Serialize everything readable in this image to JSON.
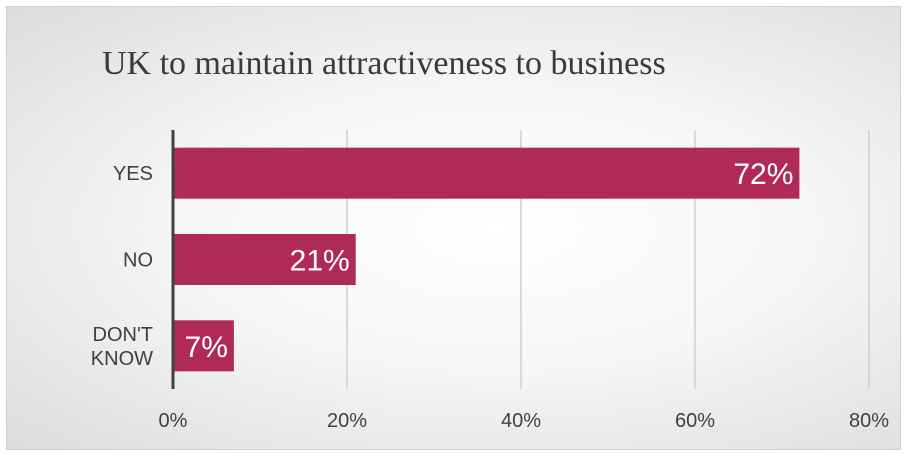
{
  "chart_data": {
    "type": "bar",
    "orientation": "horizontal",
    "title": "UK to maintain attractiveness to business",
    "categories": [
      [
        "YES"
      ],
      [
        "NO"
      ],
      [
        "DON'T",
        "KNOW"
      ]
    ],
    "values": [
      72,
      21,
      7
    ],
    "data_labels": [
      "72%",
      "21%",
      "7%"
    ],
    "xlim": [
      0,
      80
    ],
    "x_ticks": [
      0,
      20,
      40,
      60,
      80
    ],
    "x_tick_labels": [
      "0%",
      "20%",
      "40%",
      "60%",
      "80%"
    ],
    "grid": "vertical",
    "legend": "none",
    "bar_color": "#b02a57"
  }
}
